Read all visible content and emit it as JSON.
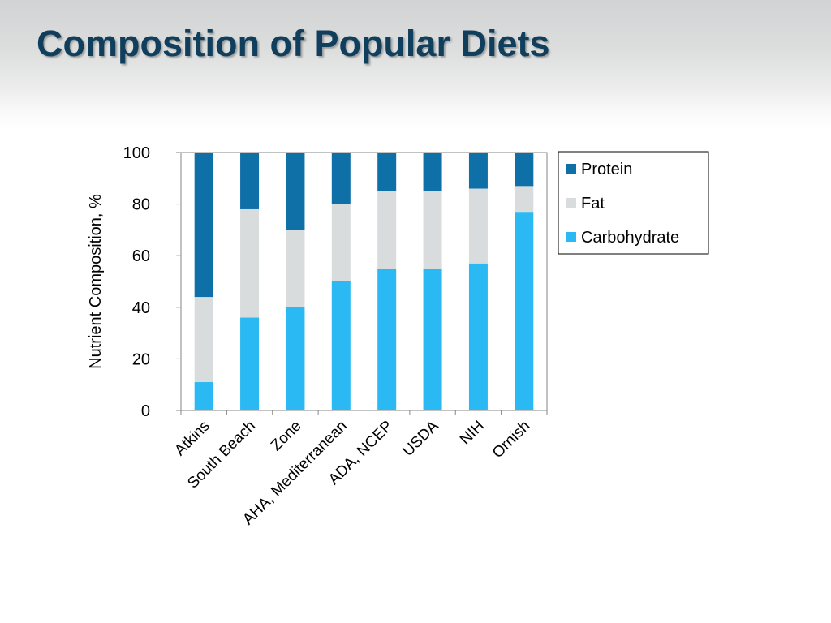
{
  "slide": {
    "title": "Composition of Popular Diets"
  },
  "chart_data": {
    "type": "bar",
    "stacked": true,
    "title": "",
    "xlabel": "",
    "ylabel": "Nutrient Composition, %",
    "ylim": [
      0,
      100
    ],
    "yticks": [
      0,
      20,
      40,
      60,
      80,
      100
    ],
    "grid": false,
    "legend_position": "right",
    "categories": [
      "Atkins",
      "South Beach",
      "Zone",
      "AHA, Mediterranean",
      "ADA, NCEP",
      "USDA",
      "NIH",
      "Ornish"
    ],
    "series": [
      {
        "name": "Carbohydrate",
        "color": "#2ab9f3",
        "values": [
          11,
          36,
          40,
          50,
          55,
          55,
          57,
          77
        ]
      },
      {
        "name": "Fat",
        "color": "#d9dcdd",
        "values": [
          33,
          42,
          30,
          30,
          30,
          30,
          29,
          10
        ]
      },
      {
        "name": "Protein",
        "color": "#0f6fa7",
        "values": [
          56,
          22,
          30,
          20,
          15,
          15,
          14,
          13
        ]
      }
    ],
    "legend_order": [
      "Protein",
      "Fat",
      "Carbohydrate"
    ]
  }
}
